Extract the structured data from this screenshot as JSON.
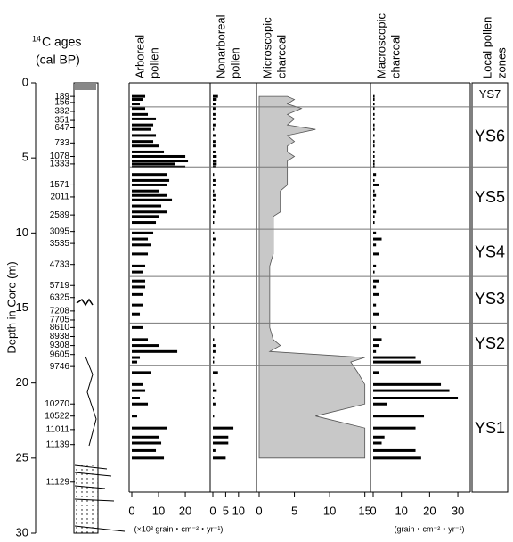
{
  "depth_axis": {
    "title": "Depth in Core (m)",
    "ylim": [
      0,
      30
    ],
    "yticks": [
      0,
      5,
      10,
      15,
      20,
      25,
      30
    ]
  },
  "ages": {
    "superscript": "14",
    "title": "C ages",
    "unit": "(cal BP)",
    "depths": [
      0.9,
      1.3,
      1.9,
      2.5,
      3.0,
      4.0,
      4.9,
      5.4,
      6.8,
      7.6,
      8.8,
      9.9,
      10.7,
      12.1,
      13.5,
      14.3,
      15.2,
      15.8,
      16.3,
      16.9,
      17.5,
      18.1,
      18.9,
      21.4,
      22.2,
      23.1,
      24.1,
      26.6
    ],
    "labels": [
      189,
      156,
      332,
      351,
      647,
      733,
      1078,
      1333,
      1571,
      2011,
      2589,
      3095,
      3535,
      4733,
      5719,
      6325,
      7208,
      7705,
      8610,
      8938,
      9308,
      9605,
      9746,
      10270,
      10522,
      11011,
      11139,
      11129
    ]
  },
  "samples": {
    "depth": [
      0.9,
      1.1,
      1.4,
      1.7,
      2.1,
      2.4,
      2.8,
      3.1,
      3.5,
      3.9,
      4.2,
      4.6,
      4.9,
      5.2,
      5.4,
      5.6,
      6.1,
      6.5,
      6.8,
      7.2,
      7.5,
      7.8,
      8.2,
      8.6,
      8.9,
      9.3,
      10.0,
      10.4,
      10.8,
      11.4,
      12.2,
      12.6,
      13.2,
      13.6,
      14.1,
      14.8,
      15.4,
      16.3,
      17.1,
      17.5,
      17.9,
      18.3,
      18.6,
      19.3,
      20.1,
      20.5,
      21.0,
      21.4,
      22.2,
      23.0,
      23.6,
      24.0,
      24.5,
      25.0
    ]
  },
  "chart_data": [
    {
      "type": "bar",
      "title": [
        "Arboreal",
        "pollen"
      ],
      "unit": "(×10³ grain・cm⁻²・yr⁻¹)",
      "xlim": [
        0,
        29.3
      ],
      "xticks": [
        0,
        10,
        20
      ],
      "color": "#000000",
      "values": [
        5,
        4,
        3,
        5,
        6,
        9,
        8,
        7,
        9,
        8,
        10,
        12,
        20,
        21,
        16,
        20,
        13,
        14,
        13,
        10,
        13,
        15,
        11,
        13,
        10,
        9,
        8,
        6,
        7,
        6,
        5,
        4,
        5,
        5,
        4,
        4,
        3,
        4,
        6,
        10,
        17,
        3,
        2,
        7,
        4,
        5,
        3,
        6,
        2,
        13,
        10,
        11,
        9,
        12
      ]
    },
    {
      "type": "bar",
      "title": [
        "Nonarboreal",
        "pollen"
      ],
      "xlim": [
        0,
        17
      ],
      "xticks": [
        0,
        5,
        10
      ],
      "color": "#000000",
      "values": [
        2,
        1.5,
        1,
        1,
        1,
        1,
        1,
        0.5,
        1,
        1,
        1,
        1,
        1.5,
        1.5,
        1.5,
        1,
        0.5,
        1,
        1,
        0.5,
        1,
        1,
        0.5,
        1,
        0.5,
        0.5,
        0.5,
        1,
        0.5,
        0.5,
        0.5,
        0.5,
        0.5,
        0.5,
        0.5,
        0.5,
        0.5,
        0.5,
        0.5,
        1,
        1,
        0.5,
        0.5,
        2,
        0.5,
        1.5,
        0.5,
        1,
        0.5,
        8,
        6,
        6,
        1,
        5
      ]
    },
    {
      "type": "area",
      "title": [
        "Microscopic",
        "charcoal"
      ],
      "xlim": [
        0,
        15.8
      ],
      "xticks": [
        0,
        5,
        10,
        15
      ],
      "color": "#c8c8c8",
      "values": [
        4,
        5,
        4,
        6,
        4,
        5,
        4,
        8,
        4,
        5,
        4,
        4,
        5,
        4,
        4,
        4,
        4,
        4,
        4,
        3,
        3,
        3,
        3,
        3,
        2,
        2,
        2,
        2,
        2,
        2,
        1.5,
        1.5,
        1.5,
        1.5,
        1.5,
        1.5,
        1.5,
        1.5,
        2,
        3,
        1.5,
        15,
        13,
        14,
        15,
        15,
        15,
        15,
        8,
        15,
        15,
        15,
        15,
        15
      ]
    },
    {
      "type": "bar",
      "title": [
        "Macroscopic",
        "charcoal"
      ],
      "unit": "(grain・cm⁻²・yr⁻¹)",
      "xlim": [
        0,
        34.4
      ],
      "xticks": [
        0,
        10,
        20,
        30
      ],
      "color": "#000000",
      "values": [
        0.5,
        0.5,
        0.5,
        0.5,
        0.5,
        0.5,
        0.5,
        0.5,
        0.5,
        0.5,
        0.5,
        0.5,
        0.5,
        0.5,
        0.5,
        0.5,
        1,
        0.5,
        2,
        0.5,
        1,
        0.5,
        0.5,
        1,
        0.5,
        0.5,
        1,
        3,
        1,
        2,
        1,
        0.5,
        2,
        1,
        2,
        1,
        2,
        1,
        3,
        2,
        1,
        15,
        17,
        2,
        24,
        27,
        30,
        5,
        18,
        15,
        4,
        3,
        15,
        17
      ]
    }
  ],
  "zones": {
    "title": [
      "Local pollen",
      "zones"
    ],
    "boundaries": [
      0,
      1.6,
      5.6,
      9.75,
      12.9,
      16.0,
      18.85,
      27.3
    ],
    "labels": [
      "YS7",
      "YS6",
      "YS5",
      "YS4",
      "YS3",
      "YS2",
      "YS1"
    ]
  }
}
